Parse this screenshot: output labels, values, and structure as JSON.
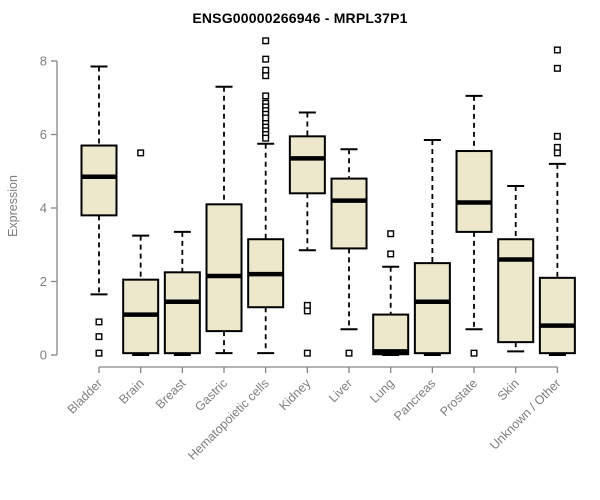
{
  "chart_data": {
    "type": "boxplot",
    "title": "ENSG00000266946 - MRPL37P1",
    "ylabel": "Expression",
    "xlabel": "",
    "ylim": [
      0,
      8.6
    ],
    "yticks": [
      0,
      2,
      4,
      6,
      8
    ],
    "grid": false,
    "legend": "none",
    "categories": [
      "Bladder",
      "Brain",
      "Breast",
      "Gastric",
      "Hematopoietic cells",
      "Kidney",
      "Liver",
      "Lung",
      "Pancreas",
      "Prostate",
      "Skin",
      "Unknown / Other"
    ],
    "series": [
      {
        "category": "Bladder",
        "low": 1.65,
        "q1": 3.8,
        "median": 4.85,
        "q3": 5.7,
        "high": 7.85,
        "outliers": [
          0.9,
          0.5,
          0.05
        ]
      },
      {
        "category": "Brain",
        "low": 0.0,
        "q1": 0.05,
        "median": 1.1,
        "q3": 2.05,
        "high": 3.25,
        "outliers": [
          5.5
        ]
      },
      {
        "category": "Breast",
        "low": 0.0,
        "q1": 0.05,
        "median": 1.45,
        "q3": 2.25,
        "high": 3.35,
        "outliers": []
      },
      {
        "category": "Gastric",
        "low": 0.05,
        "q1": 0.65,
        "median": 2.15,
        "q3": 4.1,
        "high": 7.3,
        "outliers": []
      },
      {
        "category": "Hematopoietic cells",
        "low": 0.05,
        "q1": 1.3,
        "median": 2.2,
        "q3": 3.15,
        "high": 5.75,
        "outliers": [
          8.55,
          8.05,
          7.75,
          7.6,
          7.05,
          6.85,
          6.75,
          6.65,
          6.55,
          6.45,
          6.3,
          6.2,
          6.1,
          6.0,
          5.9
        ]
      },
      {
        "category": "Kidney",
        "low": 2.85,
        "q1": 4.4,
        "median": 5.35,
        "q3": 5.95,
        "high": 6.6,
        "outliers": [
          1.35,
          1.2,
          0.05
        ]
      },
      {
        "category": "Liver",
        "low": 0.7,
        "q1": 2.9,
        "median": 4.2,
        "q3": 4.8,
        "high": 5.6,
        "outliers": [
          0.05
        ]
      },
      {
        "category": "Lung",
        "low": 0.0,
        "q1": 0.02,
        "median": 0.1,
        "q3": 1.1,
        "high": 2.4,
        "outliers": [
          3.3,
          2.75
        ]
      },
      {
        "category": "Pancreas",
        "low": 0.0,
        "q1": 0.05,
        "median": 1.45,
        "q3": 2.5,
        "high": 5.85,
        "outliers": []
      },
      {
        "category": "Prostate",
        "low": 0.7,
        "q1": 3.35,
        "median": 4.15,
        "q3": 5.55,
        "high": 7.05,
        "outliers": [
          0.05
        ]
      },
      {
        "category": "Skin",
        "low": 0.1,
        "q1": 0.35,
        "median": 2.6,
        "q3": 3.15,
        "high": 4.6,
        "outliers": []
      },
      {
        "category": "Unknown / Other",
        "low": 0.0,
        "q1": 0.05,
        "median": 0.8,
        "q3": 2.1,
        "high": 5.2,
        "outliers": [
          8.3,
          7.8,
          5.95,
          5.65,
          5.5
        ]
      }
    ],
    "colors": {
      "background": "#FFFFFF",
      "box_fill": "#EDE8CC",
      "box_stroke": "#000000",
      "median_stroke": "#000000",
      "whisker_stroke": "#000000",
      "outlier_stroke": "#000000",
      "axis": "#878787",
      "tick_text": "#7F7F7F",
      "title_text": "#000000"
    }
  }
}
